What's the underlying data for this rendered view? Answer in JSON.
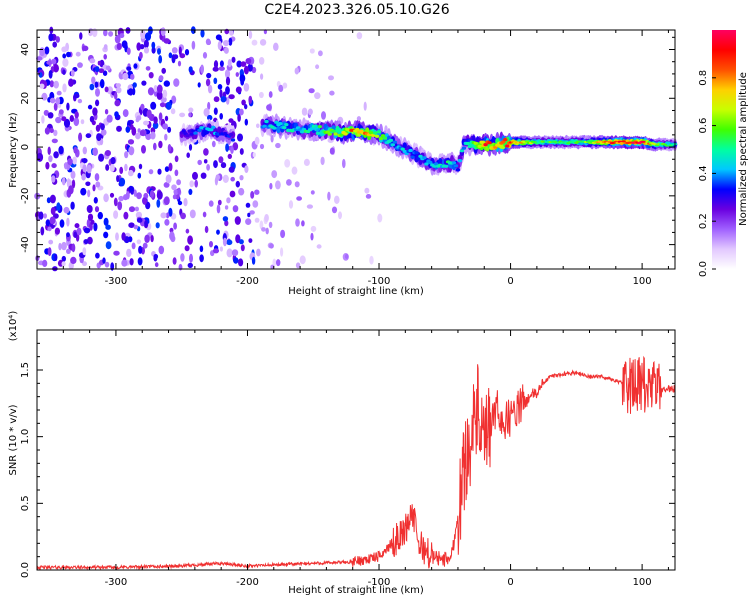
{
  "title": "C2E4.2023.326.05.10.G26",
  "chart_data": [
    {
      "type": "heatmap",
      "xlabel": "Height of straight line (km)",
      "ylabel": "Frequency (Hz)",
      "xlim": [
        -360,
        125
      ],
      "ylim": [
        -50,
        48
      ],
      "x_ticks": [
        -300,
        -200,
        -100,
        0,
        100
      ],
      "x_tick_labels": [
        "-300",
        "-200",
        "-100",
        "0",
        "100"
      ],
      "y_ticks": [
        -40,
        -20,
        0,
        20,
        40
      ],
      "y_tick_labels": [
        "-40",
        "-20",
        "0",
        "20",
        "40"
      ],
      "grid": false,
      "colorbar": {
        "label": "Normalized spectral amplitude",
        "range": [
          0.0,
          1.0
        ],
        "ticks": [
          0.0,
          0.2,
          0.4,
          0.6,
          0.8
        ],
        "tick_labels": [
          "0.0",
          "0.2",
          "0.4",
          "0.6",
          "0.8"
        ],
        "colormap": [
          "#ffffff",
          "#e2c8ff",
          "#a060ff",
          "#6a00e0",
          "#0000ff",
          "#00c8ff",
          "#00ffa0",
          "#40ff00",
          "#c8ff00",
          "#ffd000",
          "#ff5000",
          "#ff0000",
          "#ff0060"
        ]
      },
      "ridge": {
        "x": [
          -250,
          -240,
          -230,
          -220,
          -210,
          -200,
          -190,
          -180,
          -170,
          -160,
          -150,
          -140,
          -130,
          -120,
          -110,
          -100,
          -90,
          -80,
          -70,
          -60,
          -50,
          -45,
          -40,
          -35,
          -30,
          -20,
          -10,
          0,
          20,
          40,
          60,
          80,
          100,
          110,
          125
        ],
        "y": [
          5,
          6,
          7,
          6,
          4,
          null,
          9,
          9,
          8,
          7,
          7,
          7,
          6,
          6,
          6,
          5,
          2,
          -1,
          -4,
          -7,
          -7,
          -7,
          -8,
          2,
          1,
          1,
          1,
          2,
          2,
          2,
          2,
          2,
          2,
          1,
          1
        ],
        "amplitude": [
          0.3,
          0.35,
          0.4,
          0.35,
          0.3,
          null,
          0.35,
          0.45,
          0.45,
          0.45,
          0.5,
          0.55,
          0.6,
          0.8,
          0.75,
          0.55,
          0.45,
          0.4,
          0.4,
          0.45,
          0.45,
          0.5,
          0.35,
          0.45,
          0.55,
          0.85,
          0.8,
          0.85,
          0.55,
          0.55,
          0.6,
          0.9,
          0.9,
          0.6,
          0.45
        ]
      }
    },
    {
      "type": "line",
      "xlabel": "Height of straight line (km)",
      "ylabel": "SNR (10 * v/v)",
      "y_scale_label": "(x10⁴)",
      "xlim": [
        -360,
        125
      ],
      "ylim": [
        0,
        1.8
      ],
      "x_ticks": [
        -300,
        -200,
        -100,
        0,
        100
      ],
      "x_tick_labels": [
        "-300",
        "-200",
        "-100",
        "0",
        "100"
      ],
      "y_ticks": [
        0.0,
        0.5,
        1.0,
        1.5
      ],
      "y_tick_labels": [
        "0.0",
        "0.5",
        "1.0",
        "1.5"
      ],
      "grid": false,
      "series": [
        {
          "color": "#f03030",
          "x": [
            -360,
            -300,
            -250,
            -220,
            -200,
            -150,
            -120,
            -100,
            -90,
            -80,
            -75,
            -70,
            -60,
            -50,
            -45,
            -40,
            -35,
            -30,
            -25,
            -20,
            -15,
            -10,
            -5,
            0,
            5,
            10,
            15,
            20,
            25,
            30,
            40,
            50,
            60,
            70,
            80,
            90,
            95,
            100,
            105,
            110,
            115,
            120,
            125
          ],
          "y": [
            0.02,
            0.02,
            0.03,
            0.05,
            0.03,
            0.05,
            0.06,
            0.1,
            0.2,
            0.3,
            0.45,
            0.2,
            0.1,
            0.08,
            0.1,
            0.4,
            0.8,
            1.0,
            1.2,
            0.9,
            1.1,
            1.2,
            1.1,
            1.15,
            1.2,
            1.25,
            1.3,
            1.33,
            1.4,
            1.45,
            1.47,
            1.48,
            1.45,
            1.45,
            1.42,
            1.38,
            1.38,
            1.38,
            1.38,
            1.35,
            1.36,
            1.36,
            1.36
          ]
        }
      ]
    }
  ]
}
